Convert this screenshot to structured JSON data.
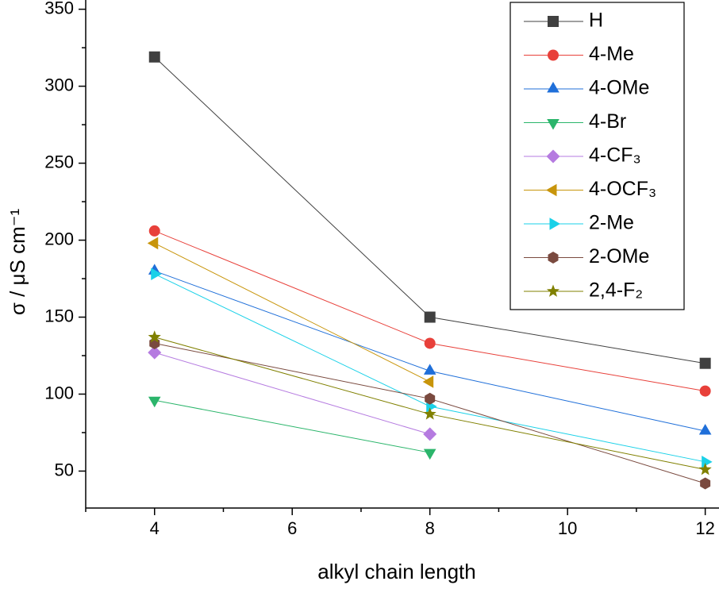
{
  "chart_data": {
    "type": "line",
    "xlabel": "alkyl chain length",
    "ylabel": "σ / μS cm⁻¹",
    "x": [
      4,
      8,
      12
    ],
    "xlim": [
      3,
      12.2
    ],
    "xticks": [
      4,
      6,
      8,
      10,
      12
    ],
    "xminorticks": [
      3,
      5,
      7,
      9,
      11
    ],
    "ylim": [
      26,
      356
    ],
    "yticks": [
      50,
      100,
      150,
      200,
      250,
      300,
      350
    ],
    "yminorticks": [
      75,
      125,
      175,
      225,
      275,
      325
    ],
    "legend": "upper right",
    "series": [
      {
        "name": "H",
        "color": "#404040",
        "marker": "square",
        "values": [
          319,
          150,
          120
        ]
      },
      {
        "name": "4-Me",
        "color": "#e8403a",
        "marker": "circle",
        "values": [
          206,
          133,
          102
        ]
      },
      {
        "name": "4-OMe",
        "color": "#1f6fd9",
        "marker": "triangle-up",
        "values": [
          180,
          115,
          76
        ]
      },
      {
        "name": "4-Br",
        "color": "#2bb56b",
        "marker": "triangle-down",
        "values": [
          96,
          62,
          null
        ]
      },
      {
        "name": "4-CF₃",
        "color": "#b57be0",
        "marker": "diamond",
        "values": [
          127,
          74,
          null
        ]
      },
      {
        "name": "4-OCF₃",
        "color": "#c8950b",
        "marker": "triangle-left",
        "values": [
          198,
          108,
          null
        ]
      },
      {
        "name": "2-Me",
        "color": "#1ad1e8",
        "marker": "triangle-right",
        "values": [
          178,
          92,
          56
        ]
      },
      {
        "name": "2-OMe",
        "color": "#7a4a3f",
        "marker": "hexagon",
        "values": [
          133,
          97,
          42
        ]
      },
      {
        "name": "2,4-F₂",
        "color": "#808000",
        "marker": "star",
        "values": [
          137,
          87,
          51
        ]
      }
    ]
  }
}
